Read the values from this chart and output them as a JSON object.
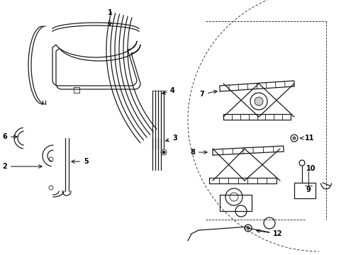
{
  "bg_color": "#ffffff",
  "line_color": "#1a1a1a",
  "figsize": [
    4.89,
    3.6
  ],
  "dpi": 100,
  "lw_thin": 0.6,
  "lw_med": 0.9,
  "lw_thick": 1.2,
  "font_size": 7.0
}
